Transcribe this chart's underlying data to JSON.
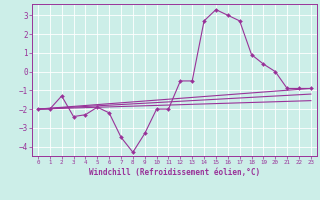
{
  "xlabel": "Windchill (Refroidissement éolien,°C)",
  "background_color": "#cceee8",
  "grid_color": "#ffffff",
  "line_color": "#993399",
  "xlim": [
    -0.5,
    23.5
  ],
  "ylim": [
    -4.5,
    3.6
  ],
  "xticks": [
    0,
    1,
    2,
    3,
    4,
    5,
    6,
    7,
    8,
    9,
    10,
    11,
    12,
    13,
    14,
    15,
    16,
    17,
    18,
    19,
    20,
    21,
    22,
    23
  ],
  "yticks": [
    -4,
    -3,
    -2,
    -1,
    0,
    1,
    2,
    3
  ],
  "series1_x": [
    0,
    1,
    2,
    3,
    4,
    5,
    6,
    7,
    8,
    9,
    10,
    11,
    12,
    13,
    14,
    15,
    16,
    17,
    18,
    19,
    20,
    21,
    22,
    23
  ],
  "series1_y": [
    -2.0,
    -2.0,
    -1.3,
    -2.4,
    -2.3,
    -1.9,
    -2.2,
    -3.5,
    -4.3,
    -3.3,
    -2.0,
    -2.0,
    -0.5,
    -0.5,
    2.7,
    3.3,
    3.0,
    2.7,
    0.9,
    0.4,
    0.0,
    -0.9,
    -0.9,
    -0.9
  ],
  "series2_x": [
    0,
    23
  ],
  "series2_y": [
    -2.0,
    -0.9
  ],
  "series3_x": [
    0,
    23
  ],
  "series3_y": [
    -2.0,
    -1.2
  ],
  "series4_x": [
    0,
    23
  ],
  "series4_y": [
    -2.0,
    -1.55
  ]
}
